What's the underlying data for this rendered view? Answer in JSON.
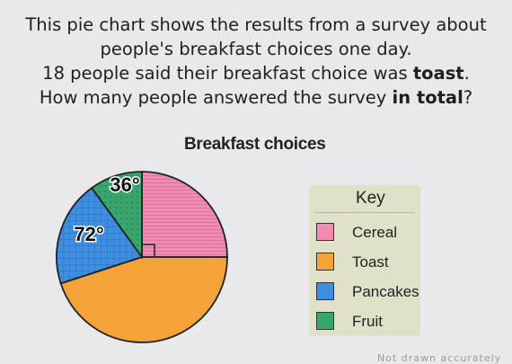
{
  "question": {
    "line1": "This pie chart shows the results from a survey about",
    "line2": "people's breakfast choices one day.",
    "line3_pre": "18 people said their breakfast choice was ",
    "line3_bold": "toast",
    "line3_post": ".",
    "line4_pre": "How many people answered the survey ",
    "line4_bold": "in total",
    "line4_post": "?"
  },
  "chart_data": {
    "type": "pie",
    "title": "Breakfast choices",
    "slices": [
      {
        "name": "Cereal",
        "angle_deg": 90,
        "color": "#f08cb4",
        "pattern": "lines"
      },
      {
        "name": "Toast",
        "angle_deg": 162,
        "color": "#f5a238",
        "pattern": "none"
      },
      {
        "name": "Pancakes",
        "angle_deg": 72,
        "color": "#3f8fe0",
        "pattern": "grid",
        "label": "72°"
      },
      {
        "name": "Fruit",
        "angle_deg": 36,
        "color": "#37a56c",
        "pattern": "dots",
        "label": "36°"
      }
    ],
    "legend_title": "Key",
    "legend_placement": "right"
  },
  "footer": {
    "partial_text": "Not drawn accurately"
  }
}
